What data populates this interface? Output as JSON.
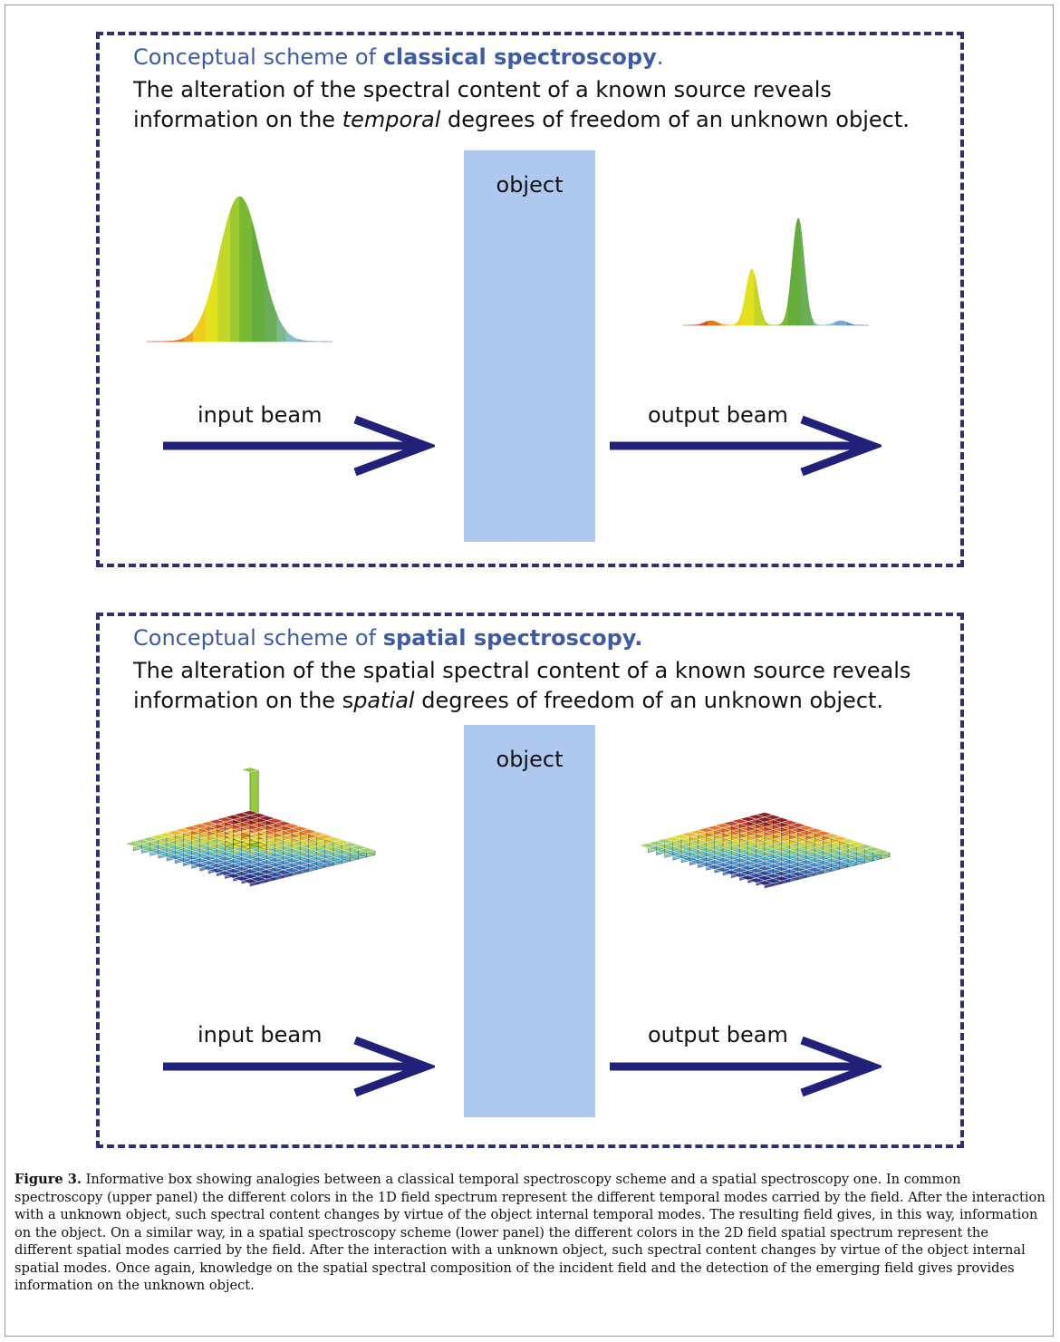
{
  "panels": [
    {
      "heading_prefix": "Conceptual scheme of ",
      "heading_bold": "classical spectroscopy",
      "heading_suffix": ".",
      "desc_part1": "The alteration of the spectral content of a known source reveals information on the ",
      "desc_italic": "temporal",
      "desc_part2": " degrees of freedom of an unknown object.",
      "object_label": "object",
      "input_label": "input beam",
      "output_label": "output beam"
    },
    {
      "heading_prefix": "Conceptual scheme of ",
      "heading_bold": "spatial spectroscopy.",
      "heading_suffix": "",
      "desc_part1": "The alteration of the spatial spectral content of a known source reveals information on the s",
      "desc_italic": "patial",
      "desc_part2": " degrees of freedom of an unknown object.",
      "object_label": "object",
      "input_label": "input beam",
      "output_label": "output beam"
    }
  ],
  "caption": {
    "label": "Figure 3.",
    "text": " Informative box showing analogies between a classical temporal spectroscopy scheme and a spatial spectroscopy one. In common spectroscopy (upper panel) the different colors in the 1D field spectrum represent the different temporal modes carried by the field. After the interaction with a unknown object, such spectral content changes by virtue of the object internal temporal modes. The resulting field gives, in this way, information on the object. On a similar way, in a spatial spectroscopy scheme (lower panel) the different colors in the 2D field spatial spectrum represent the different spatial modes carried by the field. After the interaction with a unknown object, such spectral content changes by virtue of the object internal spatial modes. Once again, knowledge on the spatial spectral composition of the incident field and the detection of the emerging field gives provides information on the unknown object."
  },
  "colors": {
    "border": "#2f2f74",
    "heading": "#3f5ba8",
    "object": "#aec8f0",
    "arrow": "#21217a"
  }
}
